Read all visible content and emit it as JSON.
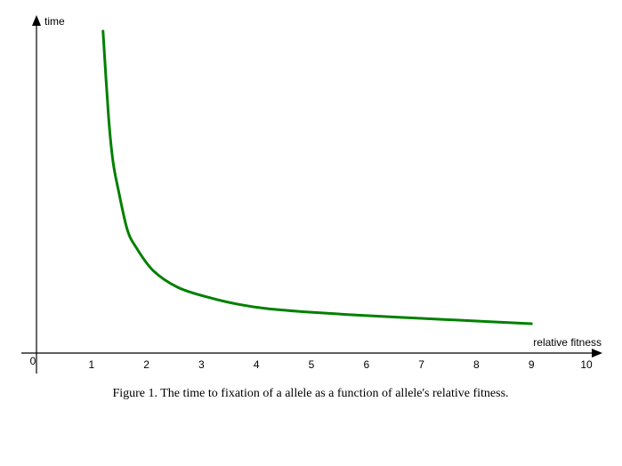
{
  "chart_data": {
    "type": "line",
    "title": "",
    "caption": "Figure 1. The time to fixation of a allele as a function of allele's relative fitness.",
    "xlabel": "relative fitness",
    "ylabel": "time",
    "xlim": [
      0,
      10
    ],
    "ylim": [
      0,
      100
    ],
    "x_ticks": [
      "0",
      "1",
      "2",
      "3",
      "4",
      "5",
      "6",
      "7",
      "8",
      "9",
      "10"
    ],
    "y_ticks": [],
    "grid": false,
    "legend": "none",
    "series": [
      {
        "color": "#008000",
        "x": [
          1.21,
          1.31,
          1.39,
          1.49,
          1.65,
          1.81,
          2.12,
          2.57,
          3.11,
          3.66,
          4.19,
          5,
          6,
          7,
          8,
          9
        ],
        "y": [
          95.5,
          70.2,
          57.0,
          48.3,
          36.7,
          31.4,
          24.5,
          19.5,
          16.6,
          14.5,
          13.2,
          12.1,
          11.1,
          10.3,
          9.5,
          8.7
        ]
      }
    ]
  }
}
